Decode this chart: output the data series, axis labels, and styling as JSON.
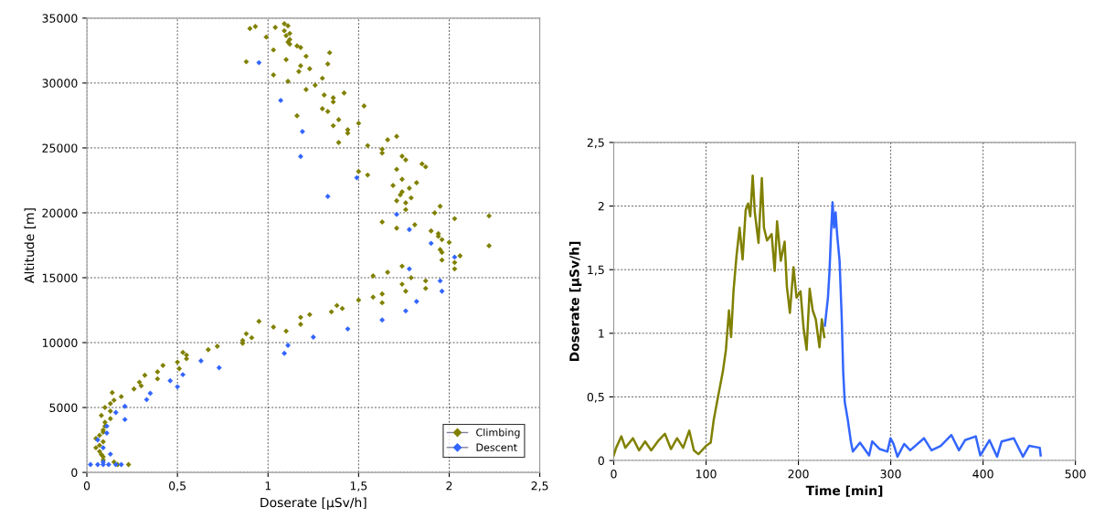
{
  "chart_data": [
    {
      "type": "scatter",
      "xlabel": "Doserate [µSv/h]",
      "ylabel": "Altitude [m]",
      "xlim": [
        0,
        2.5
      ],
      "ylim": [
        0,
        35000
      ],
      "xticks": [
        0,
        {
          "value": 0.5,
          "label": "0,5"
        },
        1,
        {
          "value": 1.5,
          "label": "1,5"
        },
        2,
        {
          "value": 2.5,
          "label": "2,5"
        }
      ],
      "yticks": [
        0,
        5000,
        10000,
        15000,
        20000,
        25000,
        30000,
        35000
      ],
      "grid": true,
      "legend": "bottom right",
      "marker": "diamond",
      "series": [
        {
          "name": "Climbing",
          "color": "#808000",
          "x": [
            0.9,
            0.93,
            1.04,
            1.09,
            1.11,
            1.09,
            1.12,
            1.1,
            1.12,
            1.11,
            1.12,
            0.99,
            1.03,
            1.16,
            1.18,
            1.21,
            1.34,
            0.88,
            1.1,
            1.18,
            1.23,
            1.33,
            1.17,
            1.03,
            1.11,
            1.3,
            1.21,
            1.26,
            1.42,
            1.31,
            1.36,
            1.36,
            1.53,
            1.16,
            1.3,
            1.33,
            1.39,
            1.5,
            1.36,
            1.44,
            1.44,
            1.39,
            1.55,
            1.63,
            1.63,
            1.66,
            1.71,
            1.74,
            1.76,
            1.85,
            1.87,
            1.5,
            1.55,
            1.71,
            1.74,
            1.82,
            1.69,
            1.78,
            1.74,
            1.73,
            1.79,
            1.71,
            1.76,
            1.76,
            1.95,
            1.92,
            2.03,
            2.22,
            1.63,
            1.71,
            1.81,
            1.9,
            1.94,
            1.94,
            1.96,
            2.0,
            2.22,
            1.95,
            1.96,
            2.03,
            2.06,
            2.03,
            1.96,
            1.58,
            1.66,
            1.74,
            1.79,
            1.74,
            1.76,
            1.87,
            1.87,
            1.58,
            1.63,
            1.63,
            1.5,
            1.35,
            1.38,
            1.41,
            1.18,
            1.23,
            1.18,
            0.95,
            1.03,
            1.1,
            0.86,
            0.86,
            0.91,
            0.88,
            0.72,
            0.67,
            0.53,
            0.55,
            0.55,
            0.5,
            0.51,
            0.42,
            0.39,
            0.39,
            0.32,
            0.29,
            0.3,
            0.26,
            0.19,
            0.14,
            0.15,
            0.13,
            0.1,
            0.08,
            0.13,
            0.13,
            0.1,
            0.1,
            0.09,
            0.09,
            0.07,
            0.05,
            0.09,
            0.07,
            0.05,
            0.07,
            0.08,
            0.09,
            0.09,
            0.15,
            0.17,
            0.23
          ],
          "values": [
            34200,
            34360,
            34290,
            34570,
            34410,
            34030,
            33820,
            33650,
            33350,
            33160,
            33000,
            33540,
            32550,
            32860,
            32740,
            32060,
            32340,
            31640,
            31800,
            31330,
            31100,
            31470,
            30890,
            30630,
            30130,
            30370,
            29500,
            29830,
            29240,
            29080,
            28870,
            28540,
            28230,
            27480,
            28020,
            27810,
            27180,
            26900,
            26710,
            26400,
            26140,
            25420,
            25180,
            24900,
            24600,
            25630,
            25890,
            24360,
            24080,
            23770,
            23540,
            23190,
            22910,
            23350,
            22580,
            22320,
            22110,
            21900,
            21620,
            21380,
            21150,
            20930,
            20770,
            20250,
            20510,
            20000,
            19550,
            19760,
            19290,
            18820,
            19080,
            18610,
            18400,
            18190,
            17930,
            17720,
            17460,
            17160,
            16950,
            16170,
            16690,
            15680,
            16360,
            15140,
            15420,
            15890,
            15000,
            14500,
            13960,
            14760,
            14180,
            13500,
            13750,
            13070,
            13280,
            12370,
            12860,
            12630,
            11950,
            12160,
            11410,
            11640,
            11200,
            10890,
            10160,
            9950,
            10380,
            10680,
            9720,
            9460,
            9250,
            9040,
            8760,
            8500,
            8000,
            8240,
            7750,
            7210,
            7490,
            6950,
            6670,
            6430,
            5840,
            6150,
            5560,
            5300,
            5000,
            4390,
            4720,
            4140,
            3860,
            3570,
            3260,
            3100,
            2860,
            2610,
            2370,
            2090,
            1900,
            1620,
            1380,
            1200,
            960,
            800,
            610,
            610
          ]
        },
        {
          "name": "Descent",
          "color": "#3366ff",
          "x": [
            0.95,
            1.07,
            1.19,
            1.18,
            1.49,
            1.33,
            1.71,
            1.78,
            1.9,
            2.03,
            1.78,
            1.95,
            1.96,
            1.82,
            1.76,
            1.63,
            1.44,
            1.25,
            1.11,
            1.09,
            0.73,
            0.63,
            0.53,
            0.5,
            0.46,
            0.35,
            0.33,
            0.21,
            0.21,
            0.16,
            0.11,
            0.11,
            0.09,
            0.06,
            0.13,
            0.02,
            0.06,
            0.09,
            0.12,
            0.16,
            0.19,
            0.09
          ],
          "values": [
            31570,
            28660,
            26260,
            24340,
            22700,
            21260,
            19880,
            18710,
            17650,
            16590,
            15680,
            14760,
            13960,
            13170,
            12440,
            11740,
            11050,
            10420,
            9790,
            9180,
            8070,
            8590,
            7530,
            6600,
            7060,
            6100,
            5610,
            5090,
            4080,
            4620,
            3570,
            3030,
            1900,
            2510,
            1410,
            610,
            610,
            610,
            610,
            610,
            610,
            800
          ]
        }
      ]
    },
    {
      "type": "line",
      "xlabel": "Time [min]",
      "ylabel": "Doserate [µSv/h]",
      "xlim": [
        0,
        500
      ],
      "ylim": [
        0,
        2.5
      ],
      "xticks": [
        0,
        100,
        200,
        300,
        400,
        500
      ],
      "yticks": [
        0,
        {
          "value": 0.5,
          "label": "0,5"
        },
        1,
        {
          "value": 1.5,
          "label": "1,5"
        },
        2,
        {
          "value": 2.5,
          "label": "2,5"
        }
      ],
      "grid": true,
      "series": [
        {
          "color": "#808000",
          "x": [
            0,
            2.6,
            8.3,
            12.5,
            20.8,
            27.4,
            34,
            40.6,
            48.8,
            55.4,
            62,
            68.6,
            75.2,
            81.8,
            86.8,
            91.7,
            100,
            105,
            108.3,
            113.2,
            118.2,
            121.5,
            124.8,
            127.1,
            129.7,
            133,
            136.3,
            139.6,
            142.9,
            145.5,
            147.9,
            150.5,
            152.8,
            156.8,
            160.4,
            162.7,
            166,
            171,
            174.3,
            176.9,
            180.9,
            185.1,
            187.5,
            190.8,
            194.7,
            198,
            202.3,
            205.6,
            208.9,
            212.2,
            215.5,
            218.8,
            222.8,
            225.4,
            228
          ],
          "values": [
            0.04,
            0.1,
            0.19,
            0.1,
            0.175,
            0.08,
            0.15,
            0.08,
            0.16,
            0.21,
            0.09,
            0.175,
            0.1,
            0.235,
            0.08,
            0.05,
            0.115,
            0.14,
            0.32,
            0.51,
            0.7,
            0.87,
            1.18,
            0.97,
            1.33,
            1.61,
            1.83,
            1.58,
            1.97,
            2.02,
            1.92,
            2.24,
            1.95,
            1.71,
            2.22,
            1.83,
            1.73,
            1.78,
            1.49,
            1.88,
            1.57,
            1.72,
            1.37,
            1.16,
            1.52,
            1.28,
            1.33,
            1.04,
            0.87,
            1.35,
            1.18,
            1.11,
            0.89,
            1.11,
            0.97
          ]
        },
        {
          "color": "#3366ff",
          "x": [
            228.7,
            232,
            233.7,
            235.3,
            237,
            238.6,
            240.3,
            241.9,
            244.6,
            246.9,
            248.5,
            250.2,
            253.5,
            256.8,
            259,
            266.7,
            276.6,
            279.9,
            288.1,
            296.4,
            299.7,
            303,
            307.3,
            314.5,
            321.1,
            336,
            344.2,
            354.1,
            365.7,
            373.9,
            380.5,
            392.1,
            397,
            406.9,
            415.2,
            420.1,
            433.3,
            443.2,
            449.8,
            461.4,
            462.4
          ],
          "values": [
            1.06,
            1.28,
            1.49,
            1.78,
            2.03,
            1.83,
            1.95,
            1.78,
            1.57,
            1.13,
            0.7,
            0.46,
            0.32,
            0.15,
            0.07,
            0.14,
            0.04,
            0.15,
            0.09,
            0.07,
            0.175,
            0.13,
            0.03,
            0.13,
            0.08,
            0.175,
            0.08,
            0.115,
            0.2,
            0.08,
            0.16,
            0.19,
            0.04,
            0.16,
            0.03,
            0.15,
            0.175,
            0.03,
            0.115,
            0.1,
            0.04
          ]
        }
      ]
    }
  ]
}
